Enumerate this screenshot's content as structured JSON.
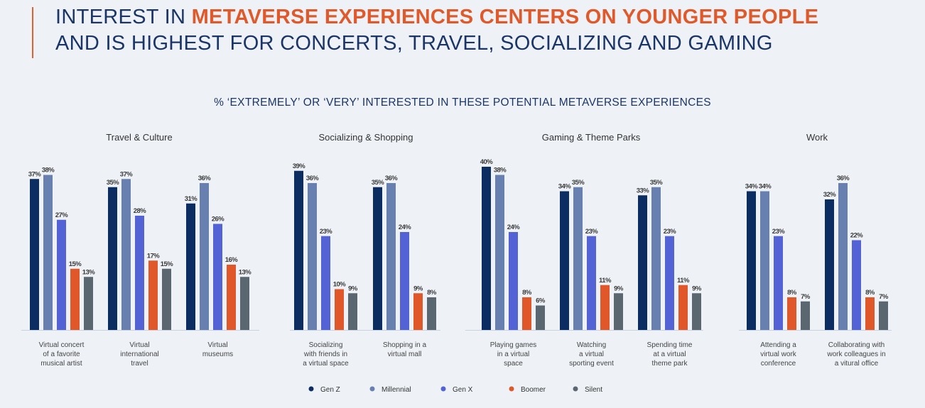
{
  "header": {
    "title_line1_plain": "INTEREST IN ",
    "title_line1_highlight": "METAVERSE EXPERIENCES CENTERS ON YOUNGER PEOPLE",
    "title_line2": "AND IS HIGHEST FOR CONCERTS, TRAVEL, SOCIALIZING AND GAMING"
  },
  "colors": {
    "title": "#1b3566",
    "highlight": "#e0592a"
  },
  "chart_data": {
    "type": "bar",
    "title": "% ‘EXTREMELY’ OR ‘VERY’ INTERESTED IN THESE POTENTIAL METAVERSE EXPERIENCES",
    "ylim": [
      0,
      40
    ],
    "grid": false,
    "legend_position": "bottom",
    "series_names": [
      "Gen Z",
      "Millennial",
      "Gen X",
      "Boomer",
      "Silent"
    ],
    "series_colors": [
      "#0b2d62",
      "#6880b0",
      "#5363d6",
      "#e0582a",
      "#5a6670"
    ],
    "sections": [
      {
        "name": "Travel & Culture",
        "categories": [
          {
            "label": [
              "Virtual concert",
              "of a favorite",
              "musical artist"
            ],
            "values": [
              37,
              38,
              27,
              15,
              13
            ]
          },
          {
            "label": [
              "Virtual",
              "international",
              "travel"
            ],
            "values": [
              35,
              37,
              28,
              17,
              15
            ]
          },
          {
            "label": [
              "Virtual",
              "museums"
            ],
            "values": [
              31,
              36,
              26,
              16,
              13
            ]
          }
        ]
      },
      {
        "name": "Socializing & Shopping",
        "categories": [
          {
            "label": [
              "Socializing",
              "with friends in",
              "a virtual space"
            ],
            "values": [
              39,
              36,
              23,
              10,
              9
            ]
          },
          {
            "label": [
              "Shopping in a",
              "virtual mall"
            ],
            "values": [
              35,
              36,
              24,
              9,
              8
            ]
          }
        ]
      },
      {
        "name": "Gaming & Theme Parks",
        "categories": [
          {
            "label": [
              "Playing games",
              "in a virtual",
              "space"
            ],
            "values": [
              40,
              38,
              24,
              8,
              6
            ]
          },
          {
            "label": [
              "Watching",
              "a virtual",
              "sporting event"
            ],
            "values": [
              34,
              35,
              23,
              11,
              9
            ]
          },
          {
            "label": [
              "Spending time",
              "at a virtual",
              "theme park"
            ],
            "values": [
              33,
              35,
              23,
              11,
              9
            ]
          }
        ]
      },
      {
        "name": "Work",
        "categories": [
          {
            "label": [
              "Attending a",
              "virtual work",
              "conference"
            ],
            "values": [
              34,
              34,
              23,
              8,
              7
            ]
          },
          {
            "label": [
              "Collaborating with",
              "work colleagues in",
              "a vitural office"
            ],
            "values": [
              32,
              36,
              22,
              8,
              7
            ]
          }
        ]
      }
    ]
  }
}
